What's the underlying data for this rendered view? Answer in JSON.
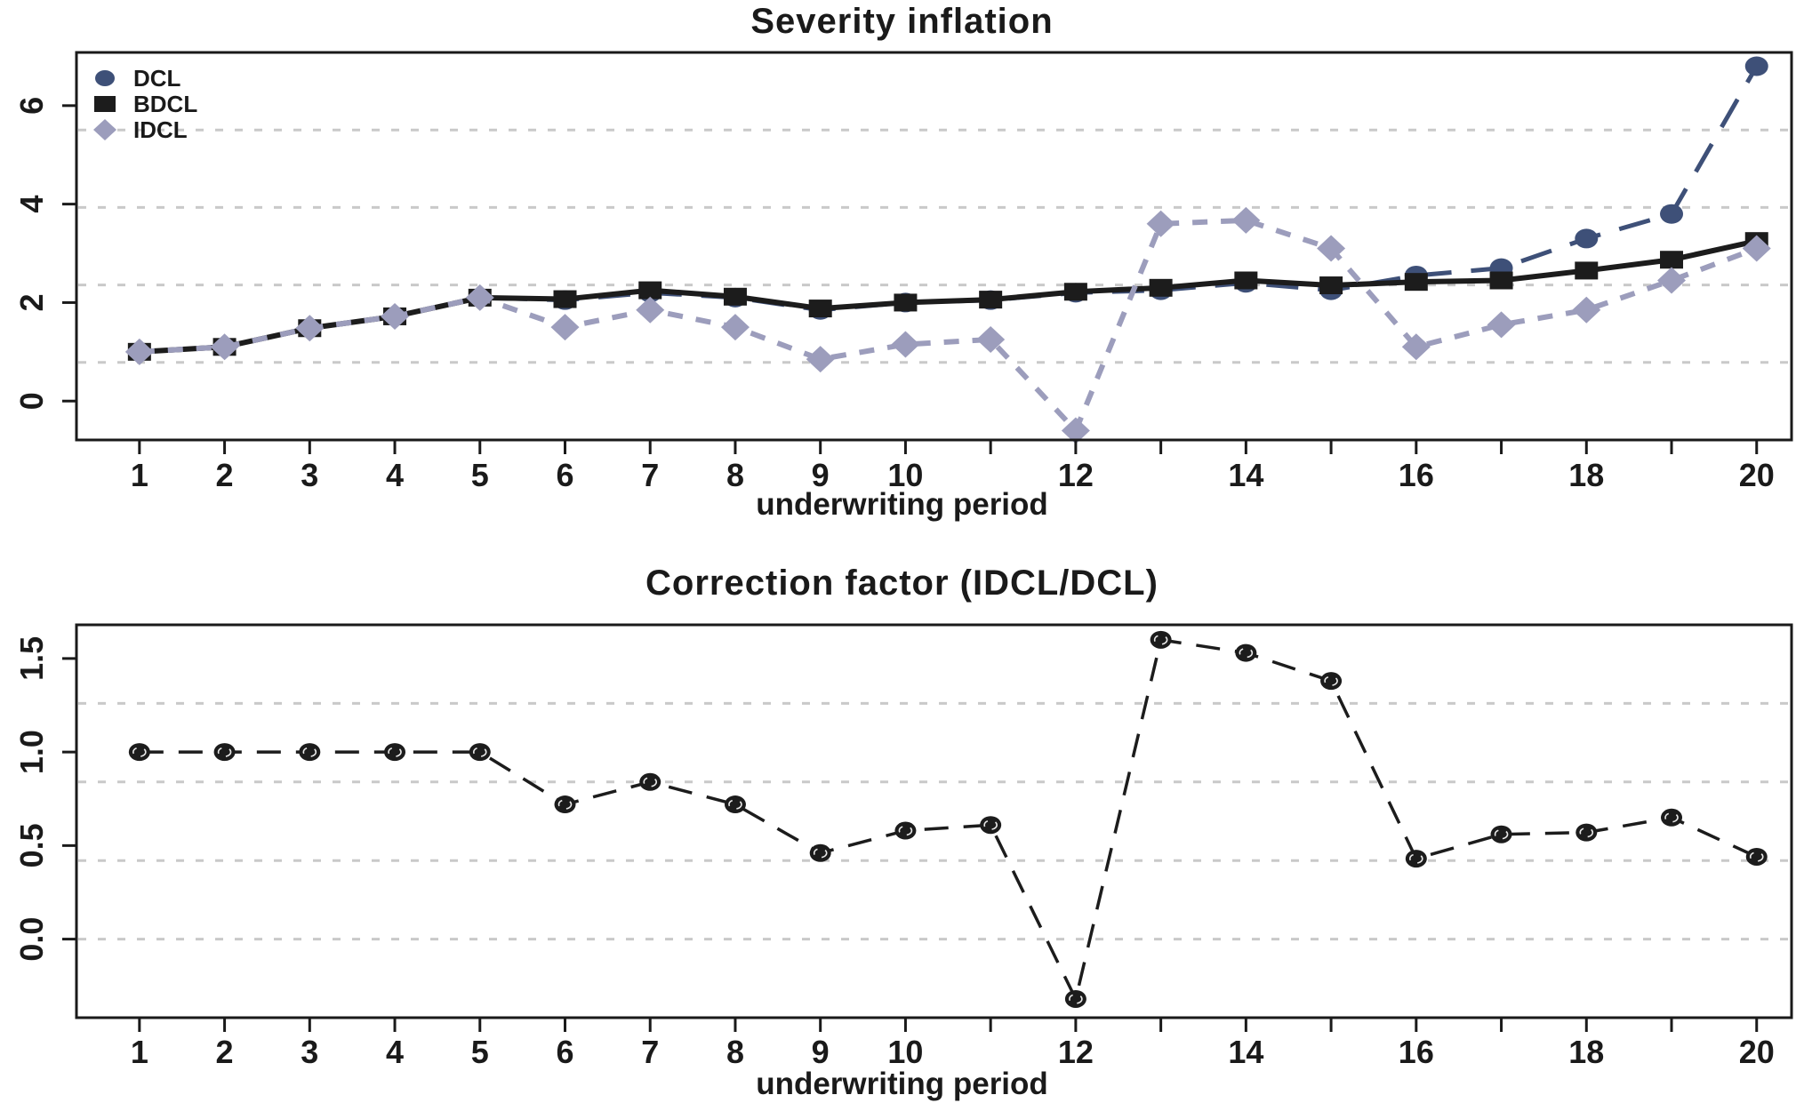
{
  "page": {
    "background": "#ffffff",
    "text_color": "#1a1a1a",
    "axis_color": "#1a1a1a",
    "grid_color": "#c9c9c9"
  },
  "chart_data": [
    {
      "type": "line",
      "title": "Severity inflation",
      "xlabel": "underwriting period",
      "ylabel": "",
      "grid": "horizontal-dashed",
      "x": [
        1,
        2,
        3,
        4,
        5,
        6,
        7,
        8,
        9,
        10,
        11,
        12,
        13,
        14,
        15,
        16,
        17,
        18,
        19,
        20
      ],
      "xtick_labels": [
        "1",
        "2",
        "3",
        "4",
        "5",
        "6",
        "7",
        "8",
        "9",
        "10",
        "",
        "12",
        "",
        "14",
        "",
        "16",
        "",
        "18",
        "",
        "20"
      ],
      "ytick_values": [
        0,
        2,
        4,
        6
      ],
      "ytick_labels": [
        "0",
        "2",
        "4",
        "6"
      ],
      "xlim": [
        0.26,
        20.41
      ],
      "ylim": [
        -0.79,
        7.08
      ],
      "legend": {
        "position": "top-left",
        "items": [
          "DCL",
          "BDCL",
          "IDCL"
        ]
      },
      "series": [
        {
          "name": "DCL",
          "marker": "circle",
          "linestyle": "long-dashed",
          "color": "#3e5078",
          "values": [
            1.0,
            1.1,
            1.48,
            1.72,
            2.1,
            2.05,
            2.2,
            2.1,
            1.85,
            2.0,
            2.05,
            2.2,
            2.25,
            2.4,
            2.25,
            2.55,
            2.7,
            3.3,
            3.8,
            6.8
          ]
        },
        {
          "name": "BDCL",
          "marker": "square",
          "linestyle": "solid",
          "color": "#1c1c1c",
          "values": [
            1.0,
            1.1,
            1.48,
            1.72,
            2.1,
            2.07,
            2.25,
            2.12,
            1.88,
            2.0,
            2.06,
            2.22,
            2.3,
            2.45,
            2.35,
            2.42,
            2.45,
            2.65,
            2.87,
            3.25
          ]
        },
        {
          "name": "IDCL",
          "marker": "diamond",
          "linestyle": "dashed",
          "color": "#9c9dbc",
          "values": [
            1.0,
            1.1,
            1.48,
            1.72,
            2.1,
            1.5,
            1.85,
            1.5,
            0.85,
            1.15,
            1.25,
            -0.6,
            3.6,
            3.67,
            3.1,
            1.1,
            1.55,
            1.85,
            2.45,
            3.1
          ]
        }
      ]
    },
    {
      "type": "line",
      "title": "Correction factor (IDCL/DCL)",
      "xlabel": "underwriting period",
      "ylabel": "",
      "grid": "horizontal-dashed",
      "x": [
        1,
        2,
        3,
        4,
        5,
        6,
        7,
        8,
        9,
        10,
        11,
        12,
        13,
        14,
        15,
        16,
        17,
        18,
        19,
        20
      ],
      "xtick_labels": [
        "1",
        "2",
        "3",
        "4",
        "5",
        "6",
        "7",
        "8",
        "9",
        "10",
        "",
        "12",
        "",
        "14",
        "",
        "16",
        "",
        "18",
        "",
        "20"
      ],
      "ytick_values": [
        0.0,
        0.5,
        1.0,
        1.5
      ],
      "ytick_labels": [
        "0.0",
        "0.5",
        "1.0",
        "1.5"
      ],
      "xlim": [
        0.26,
        20.41
      ],
      "ylim": [
        -0.42,
        1.68
      ],
      "legend": null,
      "series": [
        {
          "name": "IDCL/DCL",
          "marker": "dot",
          "linestyle": "long-dashed",
          "color": "#1c1c1c",
          "values": [
            1.0,
            1.0,
            1.0,
            1.0,
            1.0,
            0.72,
            0.84,
            0.72,
            0.46,
            0.58,
            0.61,
            -0.32,
            1.6,
            1.53,
            1.38,
            0.43,
            0.56,
            0.57,
            0.65,
            0.44
          ]
        }
      ]
    }
  ]
}
